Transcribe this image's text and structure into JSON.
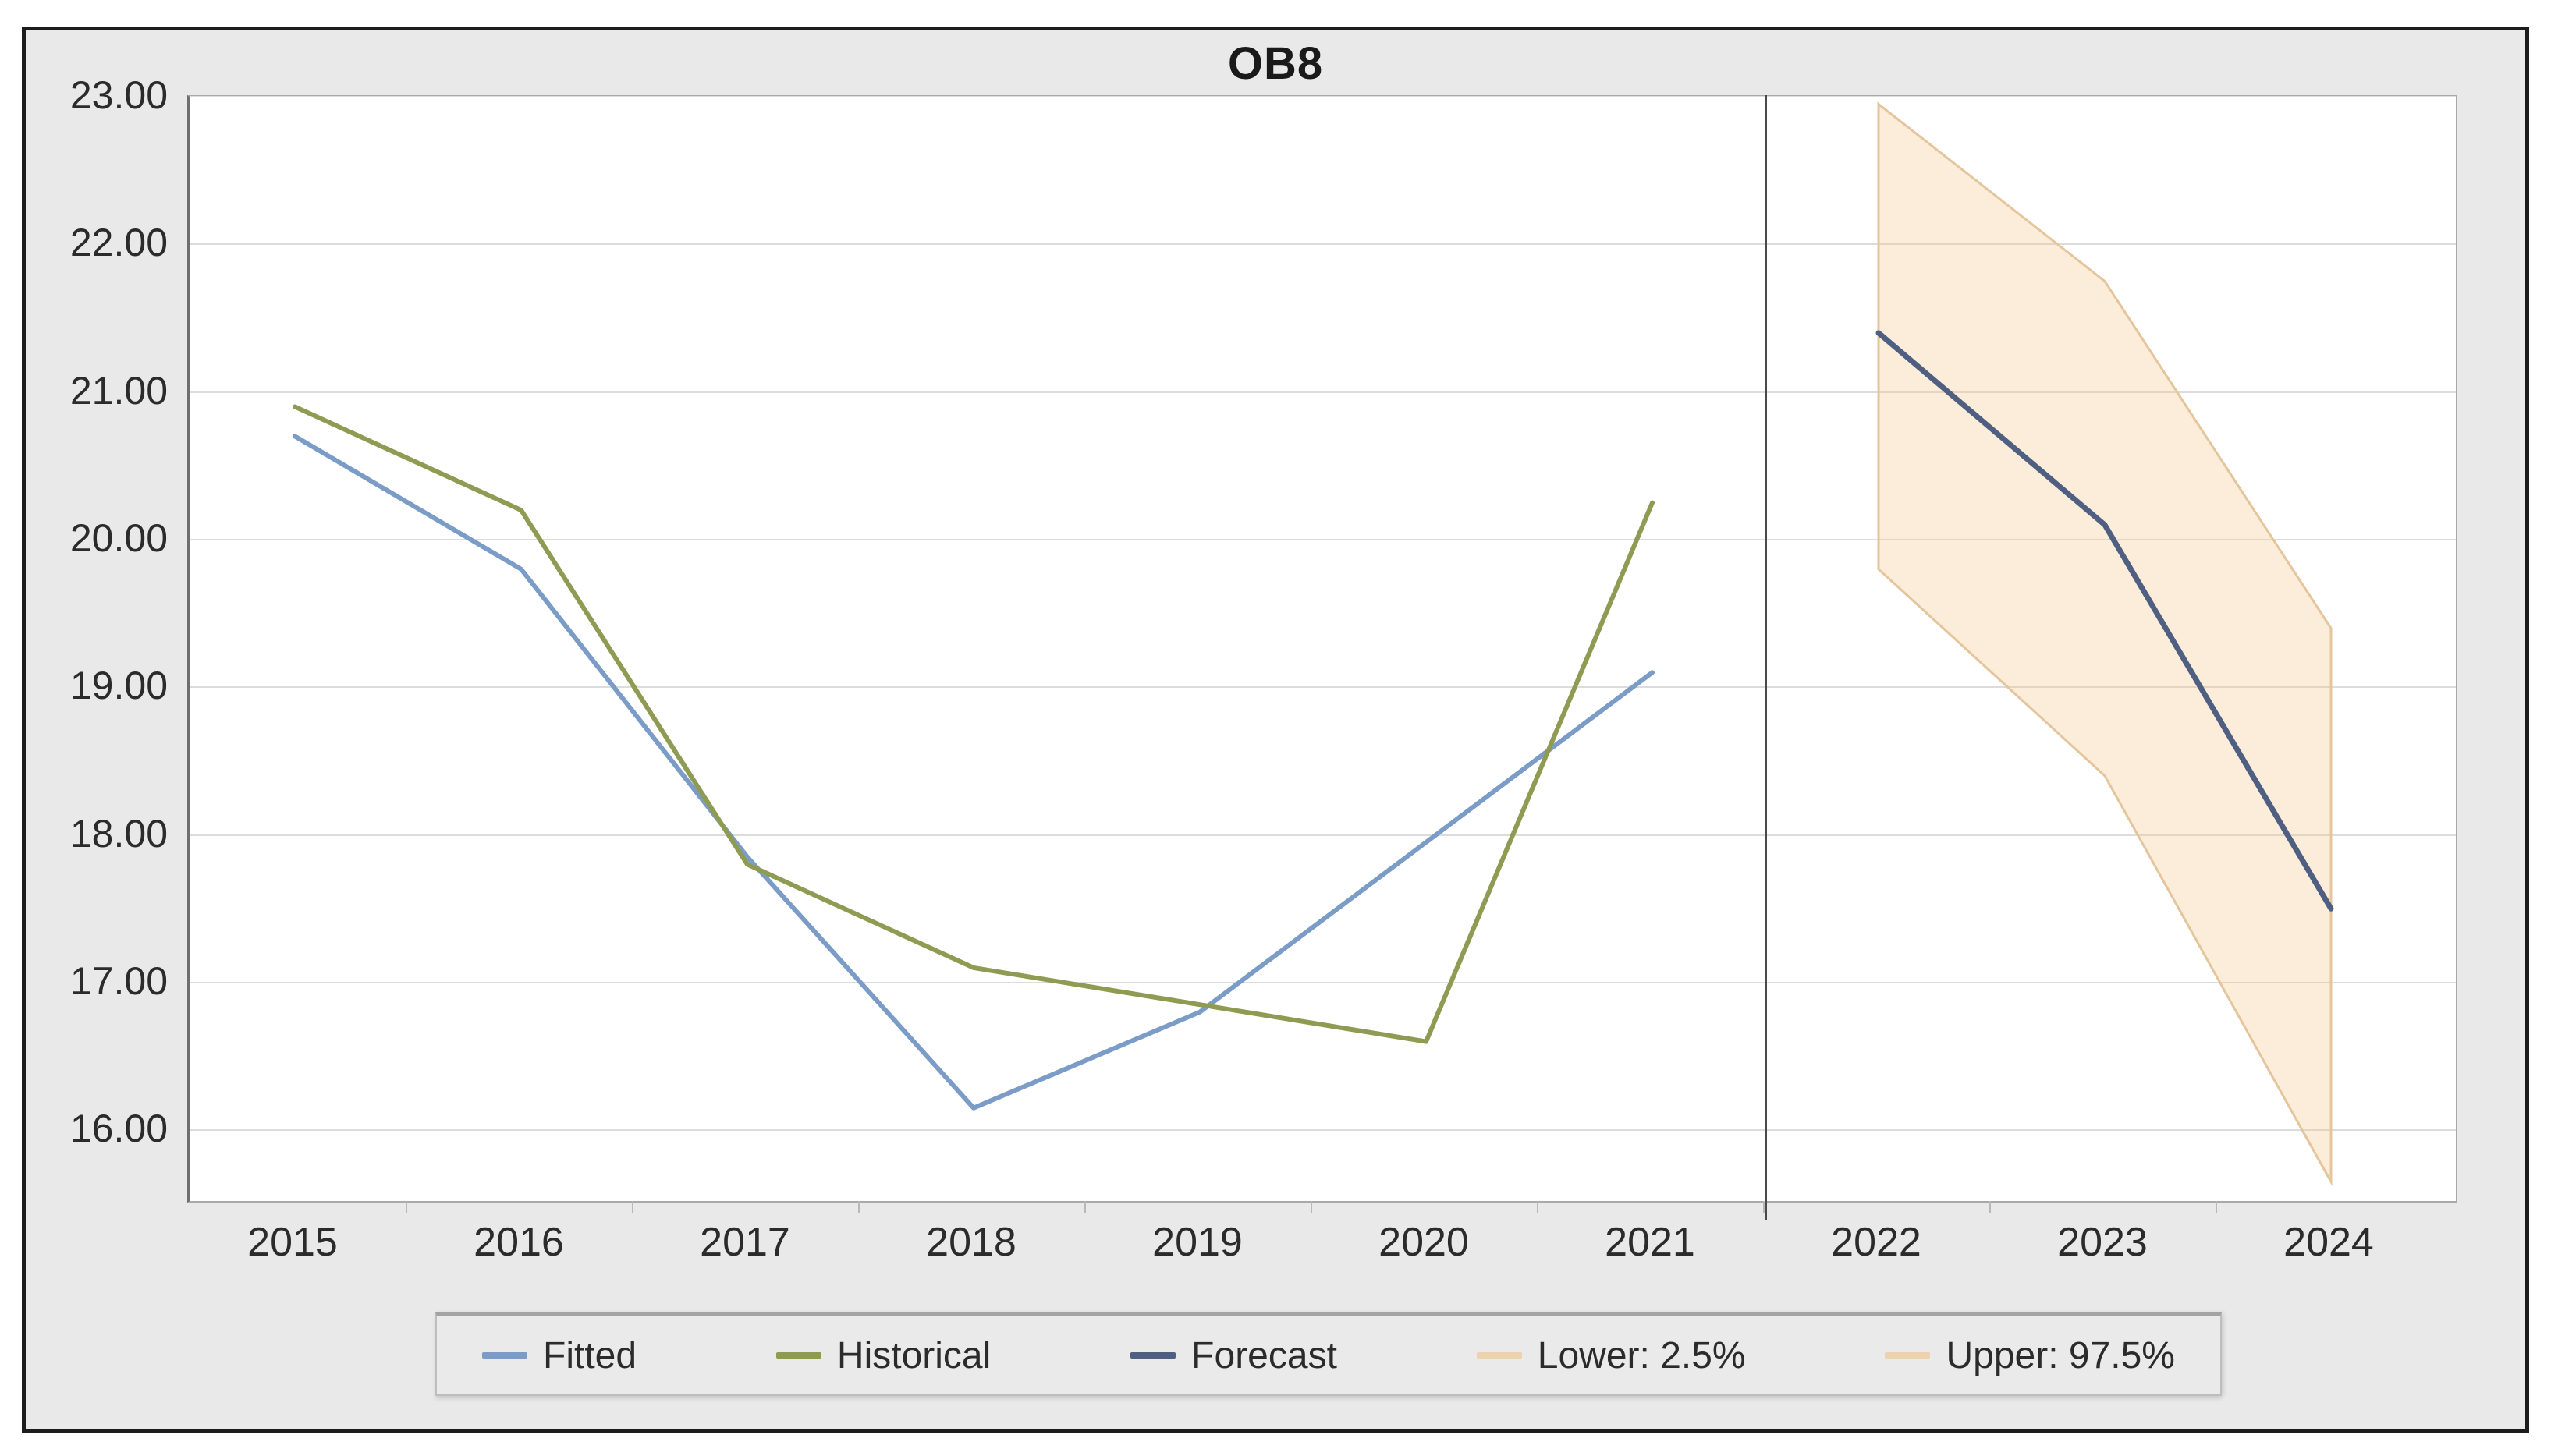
{
  "title": "OB8",
  "colors": {
    "fitted": "#7b9cc7",
    "historical": "#8f9b52",
    "forecast": "#4e5f82",
    "band_edge": "#e4c59c",
    "band_fill": "rgba(246,197,139,0.32)",
    "figure_background": "#e9e9e9",
    "plot_background": "#ffffff",
    "gridline": "#dcdcdc",
    "divider": "#4a4a4a"
  },
  "legend": {
    "items": [
      {
        "label": "Fitted",
        "color": "#7b9cc7",
        "swatch": "line"
      },
      {
        "label": "Historical",
        "color": "#8f9b52",
        "swatch": "line"
      },
      {
        "label": "Forecast",
        "color": "#4e5f82",
        "swatch": "line"
      },
      {
        "label": "Lower: 2.5%",
        "color": "#ecd2ae",
        "swatch": "line"
      },
      {
        "label": "Upper: 97.5%",
        "color": "#ecd2ae",
        "swatch": "line"
      }
    ]
  },
  "chart_data": {
    "type": "line",
    "title": "OB8",
    "x": [
      2015,
      2016,
      2017,
      2018,
      2019,
      2020,
      2021,
      2022,
      2023,
      2024
    ],
    "x_labels": [
      "2015",
      "2016",
      "2017",
      "2018",
      "2019",
      "2020",
      "2021",
      "2022",
      "2023",
      "2024"
    ],
    "y_ticks": [
      {
        "value": 23,
        "label": "23.00"
      },
      {
        "value": 22,
        "label": "22.00"
      },
      {
        "value": 21,
        "label": "21.00"
      },
      {
        "value": 20,
        "label": "20.00"
      },
      {
        "value": 19,
        "label": "19.00"
      },
      {
        "value": 18,
        "label": "18.00"
      },
      {
        "value": 17,
        "label": "17.00"
      },
      {
        "value": 16,
        "label": "16.00"
      }
    ],
    "ylim": [
      15.52,
      23.0
    ],
    "grid": "horizontal",
    "legend_position": "bottom",
    "forecast_divider_x": 2021.5,
    "series": [
      {
        "name": "Fitted",
        "color": "#7b9cc7",
        "role": "line",
        "x": [
          2015,
          2016,
          2017,
          2018,
          2019,
          2020,
          2021
        ],
        "values": [
          20.7,
          19.8,
          17.85,
          16.15,
          16.8,
          17.95,
          19.1
        ]
      },
      {
        "name": "Historical",
        "color": "#8f9b52",
        "role": "line",
        "x": [
          2015,
          2016,
          2017,
          2018,
          2019,
          2020,
          2021
        ],
        "values": [
          20.9,
          20.2,
          17.8,
          17.1,
          16.85,
          16.6,
          20.25
        ]
      },
      {
        "name": "Forecast",
        "color": "#4e5f82",
        "role": "line",
        "x": [
          2022,
          2023,
          2024
        ],
        "values": [
          21.4,
          20.1,
          17.5
        ]
      },
      {
        "name": "Lower: 2.5%",
        "color": "#e4c59c",
        "role": "band-lower",
        "x": [
          2022,
          2023,
          2024
        ],
        "values": [
          19.8,
          18.4,
          15.65
        ]
      },
      {
        "name": "Upper: 97.5%",
        "color": "#e4c59c",
        "role": "band-upper",
        "x": [
          2022,
          2023,
          2024
        ],
        "values": [
          22.95,
          21.75,
          19.4
        ]
      }
    ],
    "band_fill": "rgba(246,197,139,0.32)"
  }
}
